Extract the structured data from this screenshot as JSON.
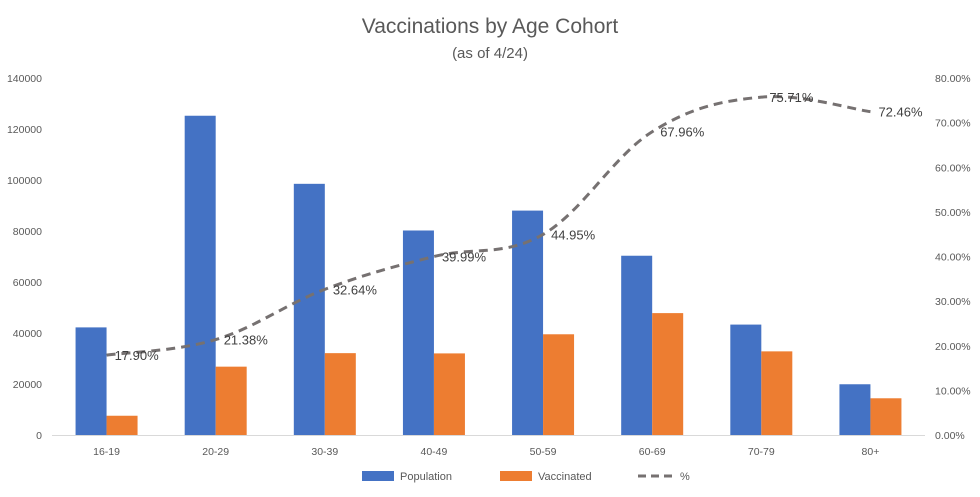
{
  "chart_data": {
    "type": "bar",
    "title": "Vaccinations by Age Cohort",
    "subtitle": "(as of 4/24)",
    "categories": [
      "16-19",
      "20-29",
      "30-39",
      "40-49",
      "50-59",
      "60-69",
      "70-79",
      "80+"
    ],
    "series": [
      {
        "name": "Population",
        "type": "bar",
        "axis": "left",
        "color": "#4472C4",
        "values": [
          42200,
          125200,
          98500,
          80200,
          88000,
          70300,
          43300,
          19900
        ]
      },
      {
        "name": "Vaccinated",
        "type": "bar",
        "axis": "left",
        "color": "#ED7D31",
        "values": [
          7550,
          26800,
          32100,
          32000,
          39500,
          47800,
          32800,
          14400
        ]
      },
      {
        "name": "%",
        "type": "line",
        "style": "dashed",
        "axis": "right",
        "color": "#767171",
        "values": [
          17.9,
          21.38,
          32.64,
          39.99,
          44.95,
          67.96,
          75.71,
          72.46
        ],
        "labels": [
          "17.90%",
          "21.38%",
          "32.64%",
          "39.99%",
          "44.95%",
          "67.96%",
          "75.71%",
          "72.46%"
        ]
      }
    ],
    "y_left": {
      "ylim": [
        0,
        140000
      ],
      "ticks": [
        0,
        20000,
        40000,
        60000,
        80000,
        100000,
        120000,
        140000
      ],
      "tick_labels": [
        "0",
        "20000",
        "40000",
        "60000",
        "80000",
        "100000",
        "120000",
        "140000"
      ]
    },
    "y_right": {
      "ylim": [
        0,
        80
      ],
      "ticks": [
        0,
        10,
        20,
        30,
        40,
        50,
        60,
        70,
        80
      ],
      "tick_labels": [
        "0.00%",
        "10.00%",
        "20.00%",
        "30.00%",
        "40.00%",
        "50.00%",
        "60.00%",
        "70.00%",
        "80.00%"
      ]
    },
    "grid": false,
    "legend": "bottom"
  }
}
